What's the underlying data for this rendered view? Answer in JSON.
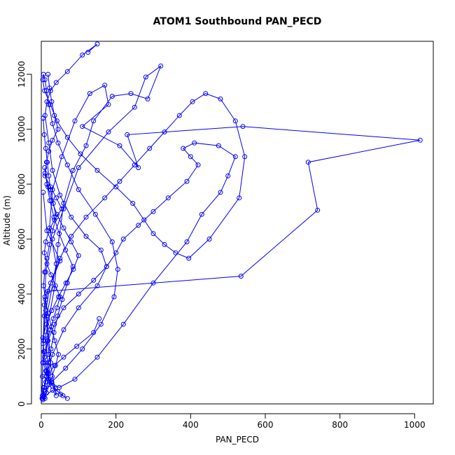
{
  "chart_data": {
    "type": "line",
    "title": "ATOM1 Southbound PAN_PECD",
    "xlabel": "PAN_PECD",
    "ylabel": "Altitude (m)",
    "xlim": [
      0,
      1050
    ],
    "ylim": [
      0,
      13200
    ],
    "xticks": [
      0,
      200,
      400,
      600,
      800,
      1000
    ],
    "yticks": [
      0,
      2000,
      4000,
      6000,
      8000,
      10000,
      12000
    ],
    "xtick_labels": [
      "0",
      "200",
      "400",
      "600",
      "800",
      "1000"
    ],
    "ytick_labels": [
      "0",
      "2000",
      "4000",
      "6000",
      "8000",
      "10000",
      "12000"
    ],
    "grid": false,
    "legend": "none",
    "color": "#0000ff",
    "marker": "open-circle",
    "series": [
      {
        "x": [
          10,
          25,
          15,
          40,
          22,
          30,
          55,
          90,
          130,
          170,
          180,
          110,
          210,
          260,
          230,
          540,
          1015,
          715,
          740,
          535,
          18,
          8,
          5,
          3,
          20,
          12,
          35,
          45,
          60,
          85,
          120,
          140,
          190,
          240,
          285,
          320,
          280,
          250,
          180,
          100,
          60,
          30,
          12,
          8,
          4,
          2,
          30,
          40,
          20,
          10,
          50,
          15,
          5
        ],
        "y": [
          200,
          1500,
          3200,
          5100,
          6400,
          7800,
          9000,
          10300,
          11300,
          11600,
          10900,
          10100,
          9400,
          8600,
          9800,
          10100,
          9600,
          8800,
          7050,
          4650,
          4100,
          3600,
          2200,
          1000,
          900,
          2500,
          4200,
          5800,
          7300,
          8500,
          9400,
          10300,
          11200,
          11300,
          11100,
          12300,
          11900,
          10800,
          9900,
          8600,
          7100,
          6000,
          4800,
          3200,
          1500,
          200,
          500,
          300,
          1800,
          3900,
          5200,
          6300,
          7700
        ]
      },
      {
        "x": [
          125,
          150,
          110,
          70,
          40,
          25,
          15,
          10,
          20,
          30,
          50,
          80,
          120,
          160,
          175,
          140,
          100,
          60,
          35,
          18,
          9,
          14,
          22,
          48,
          90,
          150,
          220,
          300,
          390,
          430,
          480,
          500,
          520,
          475,
          410,
          380,
          400,
          420,
          390,
          340,
          300,
          260,
          220,
          200,
          175,
          150,
          100,
          60,
          30,
          15,
          8,
          5
        ],
        "y": [
          12800,
          13100,
          12700,
          12100,
          11700,
          11400,
          11000,
          10500,
          9500,
          8500,
          7600,
          6800,
          6100,
          5600,
          5000,
          4500,
          4000,
          3500,
          2900,
          2300,
          1700,
          1200,
          800,
          600,
          900,
          1700,
          2900,
          4400,
          5900,
          6900,
          7700,
          8300,
          9000,
          9400,
          9500,
          9300,
          9000,
          8700,
          8100,
          7500,
          7000,
          6500,
          6000,
          5500,
          5000,
          4300,
          3500,
          2700,
          1800,
          1100,
          600,
          300
        ]
      },
      {
        "x": [
          155,
          140,
          95,
          60,
          35,
          20,
          12,
          7,
          4,
          10,
          28,
          65,
          110,
          160,
          195,
          205,
          190,
          145,
          100,
          70,
          45,
          30,
          20,
          14,
          10,
          6,
          4,
          9,
          24,
          42,
          70,
          105,
          150,
          200,
          245,
          275,
          300,
          330,
          360,
          395,
          450,
          530,
          545,
          520,
          480,
          440,
          405,
          370,
          330,
          290,
          250,
          210,
          170,
          120,
          80,
          50,
          25,
          12,
          6
        ],
        "y": [
          3100,
          2600,
          2100,
          1700,
          1400,
          1100,
          800,
          500,
          200,
          450,
          800,
          1300,
          2000,
          2900,
          3900,
          4900,
          5900,
          6900,
          7800,
          8700,
          9500,
          10200,
          10900,
          11400,
          11800,
          12000,
          11800,
          11400,
          10900,
          10300,
          9700,
          9100,
          8500,
          7900,
          7300,
          6700,
          6200,
          5800,
          5500,
          5300,
          6000,
          7500,
          9000,
          10300,
          11100,
          11300,
          11000,
          10500,
          9900,
          9300,
          8700,
          8100,
          7500,
          6800,
          6100,
          5300,
          4400,
          3400,
          2300
        ]
      },
      {
        "x": [
          18,
          22,
          28,
          35,
          45,
          30,
          20,
          14,
          10,
          25,
          40,
          55,
          35,
          20,
          12,
          8,
          15,
          26,
          38,
          50,
          42,
          32,
          24,
          16,
          9,
          5,
          12,
          20,
          30,
          44,
          58,
          70,
          52,
          38,
          26,
          17,
          11,
          7,
          4,
          14,
          28,
          46,
          66,
          86,
          100,
          80,
          60,
          42,
          28,
          18,
          10
        ],
        "y": [
          12000,
          11500,
          11000,
          10500,
          10000,
          9600,
          9200,
          8800,
          8300,
          7900,
          7500,
          7100,
          6700,
          6300,
          5900,
          5500,
          5100,
          4700,
          4300,
          3900,
          3500,
          3100,
          2700,
          2300,
          1900,
          1500,
          1200,
          900,
          650,
          450,
          300,
          200,
          350,
          550,
          800,
          1100,
          1500,
          1900,
          2400,
          2900,
          3400,
          3900,
          4400,
          4900,
          5400,
          5900,
          6400,
          6900,
          7400,
          7900,
          8400
        ]
      },
      {
        "x": [
          5,
          8,
          12,
          16,
          20,
          25,
          32,
          40,
          30,
          22,
          15,
          9,
          6,
          11,
          18,
          27,
          36,
          46,
          38,
          29,
          21,
          14,
          8,
          4,
          3,
          7,
          13,
          19,
          26,
          34,
          44,
          56,
          70,
          85,
          65,
          48,
          34,
          23,
          15,
          9
        ],
        "y": [
          10400,
          9800,
          9300,
          8800,
          8300,
          7800,
          7300,
          6800,
          6300,
          5800,
          5300,
          4800,
          4300,
          3800,
          3300,
          2800,
          2300,
          1800,
          1400,
          1000,
          700,
          400,
          250,
          150,
          300,
          600,
          1000,
          1500,
          2000,
          2600,
          3200,
          3800,
          4400,
          5000,
          5600,
          6200,
          6800,
          7400,
          8000,
          8600
        ]
      }
    ]
  }
}
